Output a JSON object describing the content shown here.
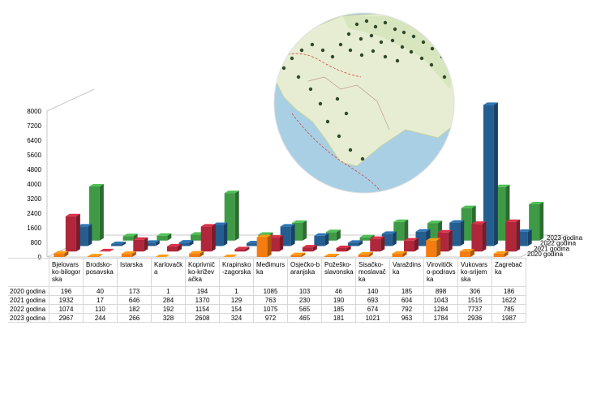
{
  "chart_data": {
    "type": "bar",
    "title": "",
    "xlabel": "",
    "ylabel": "",
    "ylim": [
      0,
      8000
    ],
    "yticks": [
      0,
      800,
      1600,
      2400,
      3200,
      4000,
      4800,
      5600,
      6400,
      7200,
      8000
    ],
    "grid": false,
    "legend": "none",
    "categories": [
      "Bjelovarsko-bilogorska",
      "Brodsko-posavska",
      "Istarska",
      "Karlovačka",
      "Koprivničko-križevačka",
      "Krapinsko-zagorska",
      "Međimurska",
      "Osječko-baranjska",
      "Požeško-slavonska",
      "Sisačko-moslavačka",
      "Varaždinska",
      "Virovitičko-podravska",
      "Vukovarsko-srijemska",
      "Zagrebačka"
    ],
    "series": [
      {
        "name": "2020 godina",
        "color": "#f47c10",
        "values": [
          "196",
          "40",
          "173",
          "1",
          "194",
          "1",
          "1085",
          "103",
          "46",
          "140",
          "185",
          "898",
          "306",
          "186"
        ]
      },
      {
        "name": "2021 godina",
        "color": "#b0263a",
        "values": [
          "1932",
          "17",
          "646",
          "284",
          "1370",
          "129",
          "763",
          "230",
          "190",
          "693",
          "604",
          "1043",
          "1515",
          "1622"
        ]
      },
      {
        "name": "2022 godina",
        "color": "#245e91",
        "values": [
          "1074",
          "110",
          "182",
          "192",
          "1154",
          "154",
          "1075",
          "565",
          "185",
          "674",
          "792",
          "1284",
          "7737",
          "785"
        ]
      },
      {
        "name": "2023 godina",
        "color": "#3f9a45",
        "values": [
          "2967",
          "244",
          "266",
          "328",
          "2608",
          "324",
          "972",
          "465",
          "181",
          "1021",
          "963",
          "1784",
          "2936",
          "1987"
        ]
      }
    ]
  },
  "map": {
    "icon": "croatia-map-icon"
  }
}
